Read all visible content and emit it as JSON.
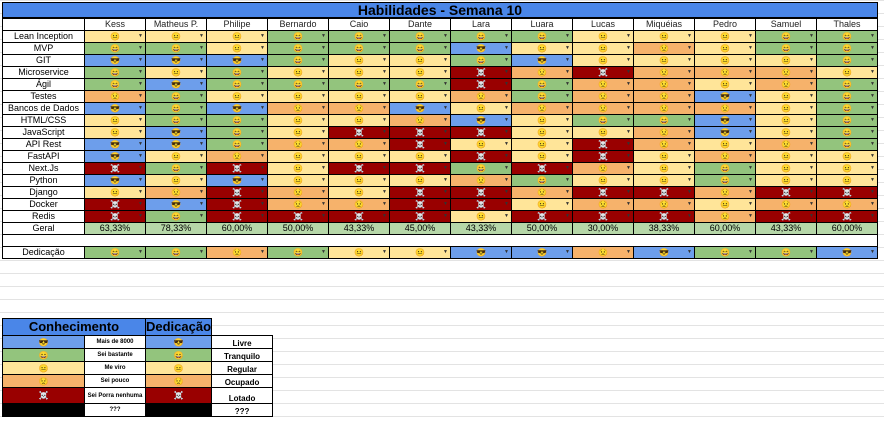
{
  "title": "Habilidades - Semana 10",
  "people": [
    "Kess",
    "Matheus P.",
    "Philipe",
    "Bernardo",
    "Caio",
    "Dante",
    "Lara",
    "Luara",
    "Lucas",
    "Miquéias",
    "Pedro",
    "Samuel",
    "Thales"
  ],
  "levels": {
    "1": {
      "color": "#6d9eeb",
      "emoji": "😎",
      "label": "Mais de 8000",
      "ded": "Livre"
    },
    "2": {
      "color": "#93c47d",
      "emoji": "😄",
      "label": "Sei bastante",
      "ded": "Tranquilo"
    },
    "3": {
      "color": "#ffe599",
      "emoji": "😐",
      "label": "Me viro",
      "ded": "Regular"
    },
    "4": {
      "color": "#f6b26b",
      "emoji": "😟",
      "label": "Sei pouco",
      "ded": "Ocupado"
    },
    "5": {
      "color": "#990000",
      "emoji": "☠️",
      "label": "Sei Porra nenhuma",
      "ded": "Lotado"
    },
    "6": {
      "color": "#000000",
      "emoji": "",
      "label": "???",
      "ded": "???"
    }
  },
  "skills": [
    {
      "name": "Lean Inception",
      "levels": [
        3,
        3,
        3,
        2,
        2,
        2,
        2,
        2,
        3,
        3,
        3,
        2,
        2
      ]
    },
    {
      "name": "MVP",
      "levels": [
        2,
        2,
        3,
        2,
        2,
        2,
        1,
        3,
        3,
        4,
        3,
        2,
        2
      ]
    },
    {
      "name": "GIT",
      "levels": [
        1,
        1,
        1,
        2,
        3,
        3,
        2,
        1,
        3,
        3,
        3,
        3,
        2
      ]
    },
    {
      "name": "Microservice",
      "levels": [
        2,
        3,
        2,
        3,
        3,
        3,
        5,
        4,
        5,
        4,
        4,
        4,
        3
      ]
    },
    {
      "name": "Ágil",
      "levels": [
        2,
        1,
        2,
        2,
        2,
        2,
        5,
        2,
        4,
        4,
        3,
        4,
        2
      ]
    },
    {
      "name": "Testes",
      "levels": [
        4,
        2,
        3,
        3,
        3,
        3,
        4,
        2,
        4,
        4,
        1,
        3,
        2
      ]
    },
    {
      "name": "Bancos de Dados",
      "levels": [
        1,
        2,
        1,
        4,
        4,
        1,
        3,
        4,
        4,
        4,
        4,
        3,
        2
      ]
    },
    {
      "name": "HTML/CSS",
      "levels": [
        3,
        2,
        2,
        3,
        3,
        4,
        1,
        3,
        2,
        2,
        1,
        3,
        2
      ]
    },
    {
      "name": "JavaScript",
      "levels": [
        3,
        1,
        2,
        3,
        5,
        5,
        5,
        3,
        3,
        4,
        1,
        3,
        2
      ]
    },
    {
      "name": "API Rest",
      "levels": [
        1,
        1,
        2,
        4,
        4,
        5,
        3,
        3,
        5,
        4,
        3,
        4,
        2
      ]
    },
    {
      "name": "FastAPI",
      "levels": [
        1,
        3,
        4,
        3,
        3,
        3,
        5,
        3,
        5,
        3,
        4,
        3,
        3
      ]
    },
    {
      "name": "Next.Js",
      "levels": [
        5,
        2,
        5,
        3,
        5,
        5,
        2,
        5,
        4,
        3,
        2,
        3,
        3
      ]
    },
    {
      "name": "Python",
      "levels": [
        1,
        3,
        1,
        3,
        3,
        3,
        4,
        2,
        3,
        3,
        2,
        3,
        3
      ]
    },
    {
      "name": "Django",
      "levels": [
        3,
        4,
        5,
        4,
        3,
        5,
        5,
        4,
        5,
        5,
        4,
        5,
        5
      ]
    },
    {
      "name": "Docker",
      "levels": [
        5,
        1,
        5,
        4,
        4,
        5,
        5,
        3,
        4,
        4,
        3,
        4,
        4
      ]
    },
    {
      "name": "Redis",
      "levels": [
        5,
        2,
        5,
        5,
        5,
        5,
        3,
        5,
        5,
        5,
        4,
        5,
        5
      ]
    }
  ],
  "geral": {
    "label": "Geral",
    "values": [
      "63,33%",
      "78,33%",
      "60,00%",
      "50,00%",
      "43,33%",
      "45,00%",
      "43,33%",
      "50,00%",
      "30,00%",
      "38,33%",
      "60,00%",
      "43,33%",
      "60,00%"
    ]
  },
  "dedicacao": {
    "label": "Dedicação",
    "levels": [
      2,
      2,
      4,
      2,
      3,
      3,
      1,
      1,
      4,
      1,
      2,
      2,
      1
    ]
  },
  "legend": {
    "conhecimento": "Conhecimento",
    "dedicacao": "Dedicação"
  }
}
